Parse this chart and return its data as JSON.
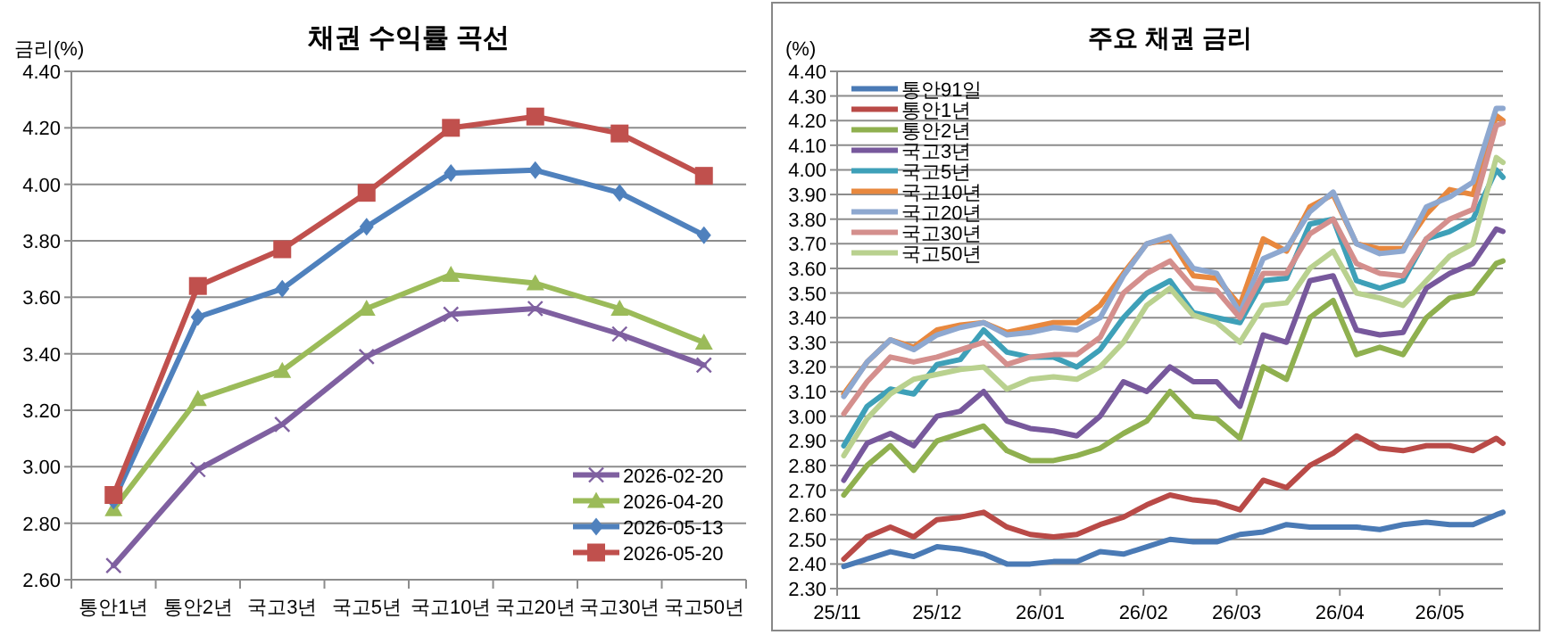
{
  "chart_data": [
    {
      "type": "line",
      "title": "채권 수익률 곡선",
      "ylabel": "금리(%)",
      "categories": [
        "통안1년",
        "통안2년",
        "국고3년",
        "국고5년",
        "국고10년",
        "국고20년",
        "국고30년",
        "국고50년"
      ],
      "ylim": [
        2.6,
        4.4
      ],
      "yticks": [
        {
          "value": 2.6,
          "label": "2.60"
        },
        {
          "value": 2.8,
          "label": "2.80"
        },
        {
          "value": 3.0,
          "label": "3.00"
        },
        {
          "value": 3.2,
          "label": "3.20"
        },
        {
          "value": 3.4,
          "label": "3.40"
        },
        {
          "value": 3.6,
          "label": "3.60"
        },
        {
          "value": 3.8,
          "label": "3.80"
        },
        {
          "value": 4.0,
          "label": "4.00"
        },
        {
          "value": 4.2,
          "label": "4.20"
        },
        {
          "value": 4.4,
          "label": "4.40"
        }
      ],
      "grid": "y",
      "legend": "bottom right",
      "series": [
        {
          "name": "2026-02-20",
          "color": "#7f60a0",
          "marker": "cross",
          "values": [
            2.65,
            2.99,
            3.15,
            3.39,
            3.54,
            3.56,
            3.47,
            3.36
          ]
        },
        {
          "name": "2026-04-20",
          "color": "#9bbb59",
          "marker": "triangle",
          "values": [
            2.85,
            3.24,
            3.34,
            3.56,
            3.68,
            3.65,
            3.56,
            3.44
          ]
        },
        {
          "name": "2026-05-13",
          "color": "#4f81bd",
          "marker": "diamond",
          "values": [
            2.88,
            3.53,
            3.63,
            3.85,
            4.04,
            4.05,
            3.97,
            3.82
          ]
        },
        {
          "name": "2026-05-20",
          "color": "#c0504d",
          "marker": "square",
          "values": [
            2.9,
            3.64,
            3.77,
            3.97,
            4.2,
            4.24,
            4.18,
            4.03
          ]
        }
      ]
    },
    {
      "type": "line",
      "title": "주요 채권 금리",
      "ylabel": "(%)",
      "x": [
        "2025-11-03",
        "2025-11-10",
        "2025-11-17",
        "2025-11-24",
        "2025-12-01",
        "2025-12-08",
        "2025-12-15",
        "2025-12-22",
        "2025-12-29",
        "2026-01-05",
        "2026-01-12",
        "2026-01-19",
        "2026-01-26",
        "2026-02-02",
        "2026-02-09",
        "2026-02-16",
        "2026-02-23",
        "2026-03-02",
        "2026-03-09",
        "2026-03-16",
        "2026-03-23",
        "2026-03-30",
        "2026-04-06",
        "2026-04-13",
        "2026-04-20",
        "2026-04-27",
        "2026-05-04",
        "2026-05-11",
        "2026-05-18",
        "2026-05-20"
      ],
      "xlim": [
        "2025-11-01",
        "2026-05-20"
      ],
      "xticks": [
        {
          "value": "2025-11-01",
          "label": "25/11"
        },
        {
          "value": "2025-12-01",
          "label": "25/12"
        },
        {
          "value": "2026-01-01",
          "label": "26/01"
        },
        {
          "value": "2026-02-01",
          "label": "26/02"
        },
        {
          "value": "2026-03-01",
          "label": "26/03"
        },
        {
          "value": "2026-04-01",
          "label": "26/04"
        },
        {
          "value": "2026-05-01",
          "label": "26/05"
        }
      ],
      "ylim": [
        2.3,
        4.4
      ],
      "yticks": [
        {
          "value": 2.3,
          "label": "2.30"
        },
        {
          "value": 2.4,
          "label": "2.40"
        },
        {
          "value": 2.5,
          "label": "2.50"
        },
        {
          "value": 2.6,
          "label": "2.60"
        },
        {
          "value": 2.7,
          "label": "2.70"
        },
        {
          "value": 2.8,
          "label": "2.80"
        },
        {
          "value": 2.9,
          "label": "2.90"
        },
        {
          "value": 3.0,
          "label": "3.00"
        },
        {
          "value": 3.1,
          "label": "3.10"
        },
        {
          "value": 3.2,
          "label": "3.20"
        },
        {
          "value": 3.3,
          "label": "3.30"
        },
        {
          "value": 3.4,
          "label": "3.40"
        },
        {
          "value": 3.5,
          "label": "3.50"
        },
        {
          "value": 3.6,
          "label": "3.60"
        },
        {
          "value": 3.7,
          "label": "3.70"
        },
        {
          "value": 3.8,
          "label": "3.80"
        },
        {
          "value": 3.9,
          "label": "3.90"
        },
        {
          "value": 4.0,
          "label": "4.00"
        },
        {
          "value": 4.1,
          "label": "4.10"
        },
        {
          "value": 4.2,
          "label": "4.20"
        },
        {
          "value": 4.3,
          "label": "4.30"
        },
        {
          "value": 4.4,
          "label": "4.40"
        }
      ],
      "grid": "y",
      "legend": "top left",
      "series": [
        {
          "name": "통안91일",
          "color": "#4a7ab5",
          "values": [
            2.39,
            2.42,
            2.45,
            2.43,
            2.47,
            2.46,
            2.44,
            2.4,
            2.4,
            2.41,
            2.41,
            2.45,
            2.44,
            2.47,
            2.5,
            2.49,
            2.49,
            2.52,
            2.53,
            2.56,
            2.55,
            2.55,
            2.55,
            2.54,
            2.56,
            2.57,
            2.56,
            2.56,
            2.6,
            2.61
          ]
        },
        {
          "name": "통안1년",
          "color": "#b94a47",
          "values": [
            2.42,
            2.51,
            2.55,
            2.51,
            2.58,
            2.59,
            2.61,
            2.55,
            2.52,
            2.51,
            2.52,
            2.56,
            2.59,
            2.64,
            2.68,
            2.66,
            2.65,
            2.62,
            2.74,
            2.71,
            2.8,
            2.85,
            2.92,
            2.87,
            2.86,
            2.88,
            2.88,
            2.86,
            2.91,
            2.89
          ]
        },
        {
          "name": "통안2년",
          "color": "#8fb04f",
          "values": [
            2.68,
            2.8,
            2.88,
            2.78,
            2.9,
            2.93,
            2.96,
            2.86,
            2.82,
            2.82,
            2.84,
            2.87,
            2.93,
            2.98,
            3.1,
            3.0,
            2.99,
            2.91,
            3.2,
            3.15,
            3.4,
            3.47,
            3.25,
            3.28,
            3.25,
            3.4,
            3.48,
            3.5,
            3.62,
            3.63
          ]
        },
        {
          "name": "국고3년",
          "color": "#77589c",
          "values": [
            2.74,
            2.89,
            2.93,
            2.88,
            3.0,
            3.02,
            3.1,
            2.98,
            2.95,
            2.94,
            2.92,
            3.0,
            3.14,
            3.1,
            3.2,
            3.14,
            3.14,
            3.04,
            3.33,
            3.3,
            3.55,
            3.57,
            3.35,
            3.33,
            3.34,
            3.52,
            3.58,
            3.62,
            3.76,
            3.75
          ]
        },
        {
          "name": "국고5년",
          "color": "#3ea0b8",
          "values": [
            2.88,
            3.04,
            3.11,
            3.09,
            3.21,
            3.23,
            3.35,
            3.26,
            3.24,
            3.24,
            3.2,
            3.27,
            3.4,
            3.5,
            3.55,
            3.42,
            3.4,
            3.38,
            3.55,
            3.56,
            3.78,
            3.8,
            3.55,
            3.52,
            3.55,
            3.72,
            3.75,
            3.8,
            4.0,
            3.97
          ]
        },
        {
          "name": "국고10년",
          "color": "#e8883e",
          "values": [
            3.09,
            3.22,
            3.31,
            3.28,
            3.35,
            3.37,
            3.38,
            3.34,
            3.36,
            3.38,
            3.38,
            3.45,
            3.58,
            3.7,
            3.72,
            3.57,
            3.56,
            3.45,
            3.72,
            3.67,
            3.85,
            3.9,
            3.7,
            3.68,
            3.68,
            3.82,
            3.92,
            3.9,
            4.22,
            4.2
          ]
        },
        {
          "name": "국고20년",
          "color": "#8ea8d0",
          "values": [
            3.08,
            3.22,
            3.31,
            3.27,
            3.33,
            3.36,
            3.38,
            3.33,
            3.34,
            3.36,
            3.35,
            3.4,
            3.57,
            3.7,
            3.73,
            3.6,
            3.58,
            3.42,
            3.64,
            3.68,
            3.83,
            3.91,
            3.7,
            3.66,
            3.67,
            3.85,
            3.89,
            3.95,
            4.25,
            4.25
          ]
        },
        {
          "name": "국고30년",
          "color": "#d48f8d",
          "values": [
            3.01,
            3.14,
            3.24,
            3.22,
            3.24,
            3.27,
            3.3,
            3.21,
            3.24,
            3.25,
            3.25,
            3.32,
            3.5,
            3.58,
            3.63,
            3.52,
            3.51,
            3.4,
            3.58,
            3.58,
            3.74,
            3.8,
            3.62,
            3.58,
            3.57,
            3.72,
            3.8,
            3.84,
            4.18,
            4.19
          ]
        },
        {
          "name": "국고50년",
          "color": "#b9d18f",
          "values": [
            2.84,
            2.99,
            3.09,
            3.15,
            3.17,
            3.19,
            3.2,
            3.11,
            3.15,
            3.16,
            3.15,
            3.2,
            3.3,
            3.45,
            3.52,
            3.41,
            3.38,
            3.3,
            3.45,
            3.46,
            3.6,
            3.67,
            3.5,
            3.48,
            3.45,
            3.55,
            3.65,
            3.7,
            4.05,
            4.03
          ]
        }
      ]
    }
  ]
}
